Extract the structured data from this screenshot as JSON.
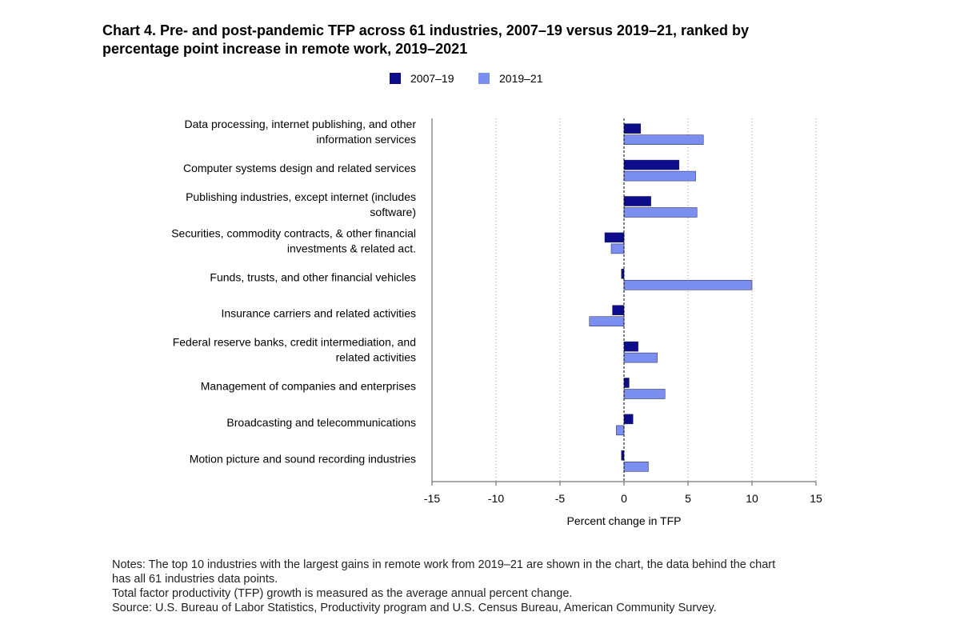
{
  "title": "Chart 4. Pre- and post-pandemic TFP across 61 industries, 2007–19 versus 2019–21, ranked by percentage point increase in remote work, 2019–2021",
  "title_lines": [
    "Chart 4. Pre- and post-pandemic TFP across 61 industries, 2007–19 versus 2019–21, ranked by",
    "percentage point increase in remote work, 2019–2021"
  ],
  "chart_data": {
    "type": "bar",
    "orientation": "horizontal",
    "categories": [
      "Data processing, internet publishing, and other information services",
      "Computer systems design and related services",
      "Publishing industries, except internet (includes software)",
      "Securities, commodity contracts, & other financial investments & related act.",
      "Funds, trusts, and other financial vehicles",
      "Insurance carriers and related activities",
      "Federal reserve banks, credit intermediation, and related activities",
      "Management of companies and enterprises",
      "Broadcasting and telecommunications",
      "Motion picture and sound recording industries"
    ],
    "category_label_lines": [
      [
        "Data processing, internet publishing, and other",
        "information services"
      ],
      [
        "Computer systems design and related services"
      ],
      [
        "Publishing industries, except internet (includes",
        "software)"
      ],
      [
        "Securities, commodity contracts, & other financial",
        "investments & related act."
      ],
      [
        "Funds, trusts, and other financial vehicles"
      ],
      [
        "Insurance carriers and related activities"
      ],
      [
        "Federal reserve banks, credit intermediation, and",
        "related activities"
      ],
      [
        "Management of companies and enterprises"
      ],
      [
        "Broadcasting and telecommunications"
      ],
      [
        "Motion picture and sound recording industries"
      ]
    ],
    "series": [
      {
        "name": "2007–19",
        "color": "#0d0d8c",
        "values": [
          1.3,
          4.3,
          2.1,
          -1.5,
          -0.2,
          -0.9,
          1.1,
          0.4,
          0.7,
          -0.2
        ]
      },
      {
        "name": "2019–21",
        "color": "#7b8ff0",
        "values": [
          6.2,
          5.6,
          5.7,
          -1.0,
          10.0,
          -2.7,
          2.6,
          3.2,
          -0.6,
          1.9
        ]
      }
    ],
    "xlabel": "Percent change in TFP",
    "ylabel": "",
    "xlim": [
      -15,
      15
    ],
    "xticks": [
      -15,
      -10,
      -5,
      0,
      5,
      10,
      15
    ],
    "grid": "vertical dotted",
    "legend_position": "top-center"
  },
  "notes": [
    "Notes: The top 10 industries with the largest gains in remote work from 2019–21 are shown in the chart, the data behind the chart",
    "has all 61 industries data points.",
    "Total factor productivity (TFP) growth is measured as the average annual percent change.",
    "Source: U.S. Bureau of Labor Statistics, Productivity program and U.S. Census Bureau, American Community Survey."
  ]
}
